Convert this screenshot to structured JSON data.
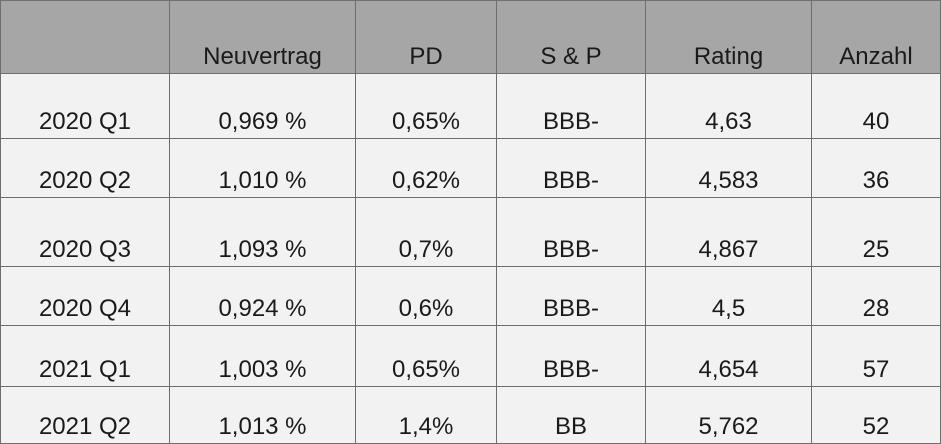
{
  "table": {
    "headers": [
      "",
      "Neuvertrag",
      "PD",
      "S & P",
      "Rating",
      "Anzahl"
    ],
    "rows": [
      [
        "2020 Q1",
        "0,969 %",
        "0,65%",
        "BBB-",
        "4,63",
        "40"
      ],
      [
        "2020 Q2",
        "1,010 %",
        "0,62%",
        "BBB-",
        "4,583",
        "36"
      ],
      [
        "2020 Q3",
        "1,093 %",
        "0,7%",
        "BBB-",
        "4,867",
        "25"
      ],
      [
        "2020 Q4",
        "0,924 %",
        "0,6%",
        "BBB-",
        "4,5",
        "28"
      ],
      [
        "2021 Q1",
        "1,003 %",
        "0,65%",
        "BBB-",
        "4,654",
        "57"
      ],
      [
        "2021 Q2",
        "1,013 %",
        "1,4%",
        "BB",
        "5,762",
        "52"
      ]
    ]
  }
}
